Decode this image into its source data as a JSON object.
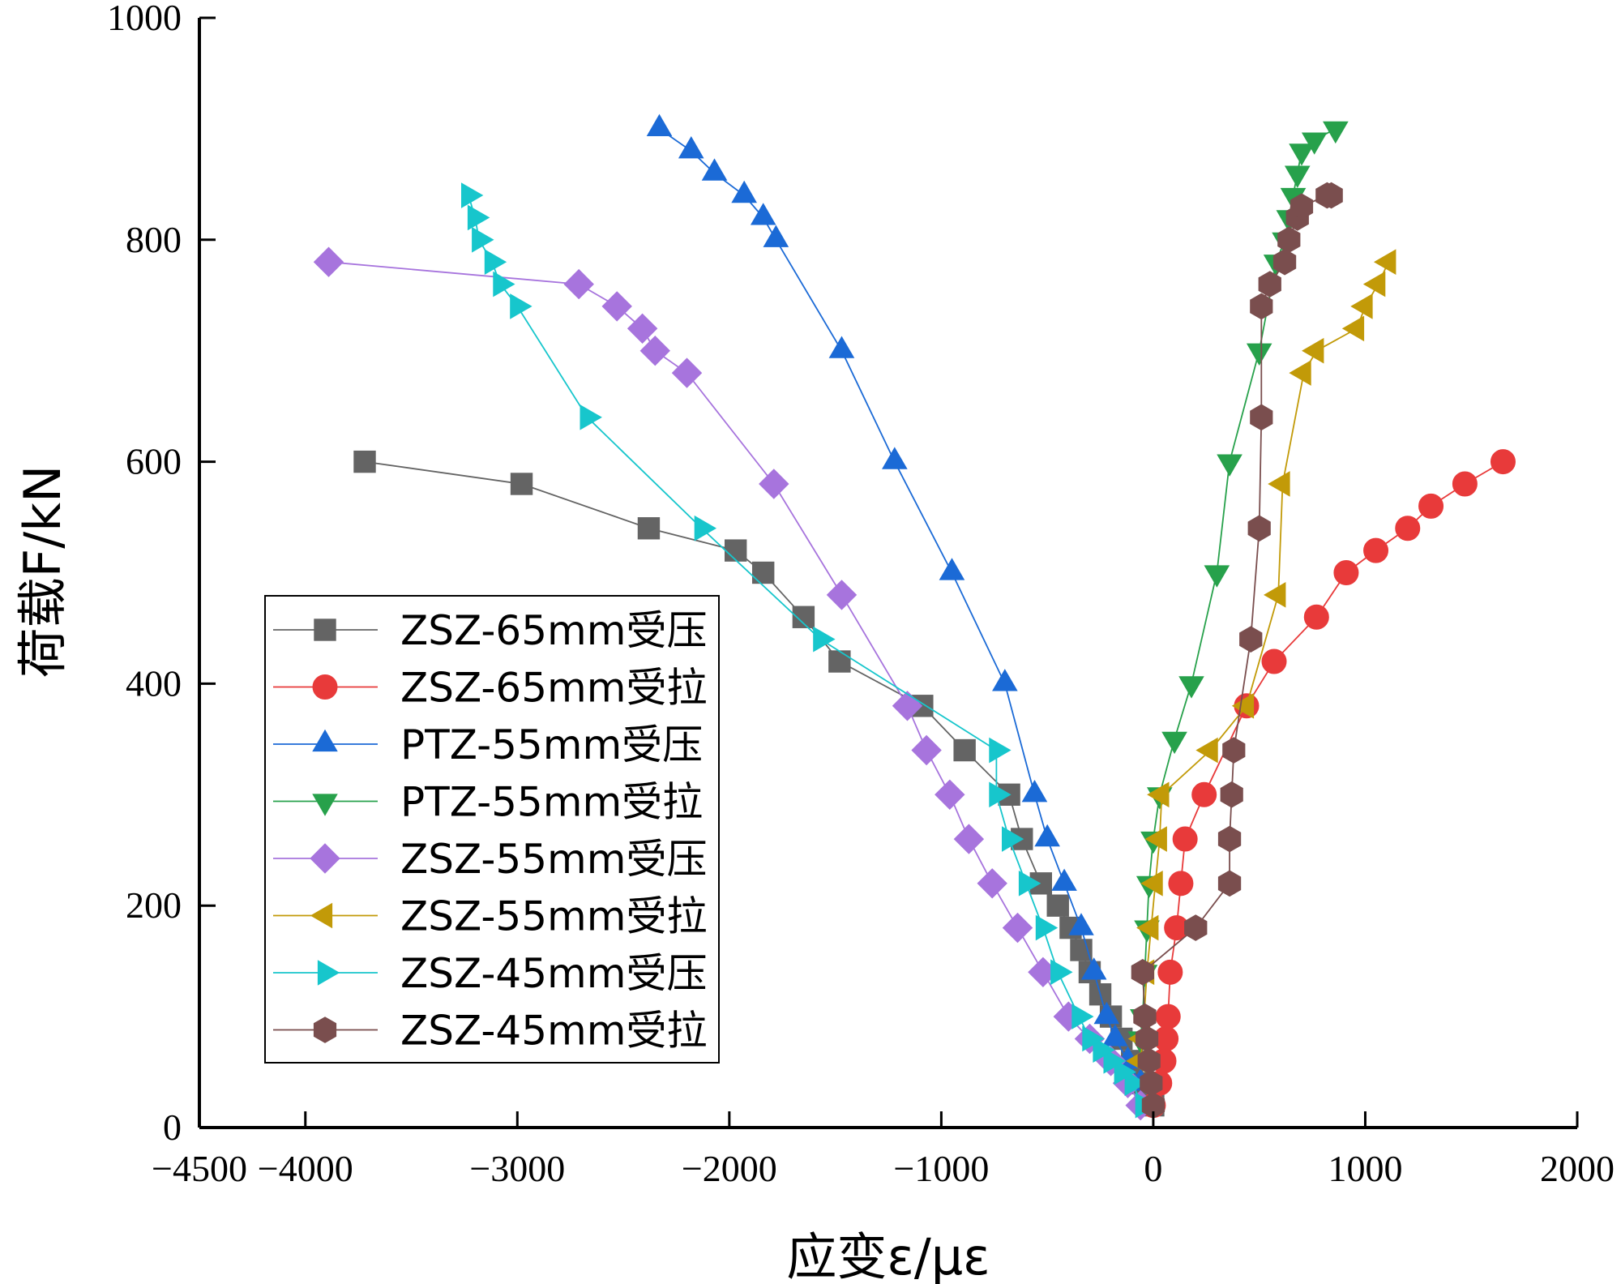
{
  "chart_data": {
    "type": "line",
    "title": "",
    "xlabel": "应变ε/με",
    "ylabel": "荷载F/kN",
    "xlim": [
      -4500,
      2000
    ],
    "ylim": [
      0,
      1000
    ],
    "xticks": [
      -4500,
      -4000,
      -3000,
      -2000,
      -1000,
      0,
      1000,
      2000
    ],
    "xtick_labels": [
      "−4500",
      "−4000",
      "−3000",
      "−2000",
      "−1000",
      "0",
      "1000",
      "2000"
    ],
    "yticks": [
      0,
      200,
      400,
      600,
      800,
      1000
    ],
    "ytick_labels": [
      "0",
      "200",
      "400",
      "600",
      "800",
      "1000"
    ],
    "grid": false,
    "legend_position": "lower-left",
    "series": [
      {
        "name": "ZSZ-65mm受压",
        "color": "#646464",
        "marker": "square",
        "x": [
          0,
          -50,
          -100,
          -150,
          -200,
          -250,
          -300,
          -340,
          -390,
          -450,
          -530,
          -620,
          -680,
          -890,
          -1090,
          -1480,
          -1650,
          -1840,
          -1970,
          -2380,
          -2980,
          -3720
        ],
        "y": [
          20,
          40,
          60,
          80,
          100,
          120,
          140,
          160,
          180,
          200,
          220,
          260,
          300,
          340,
          380,
          420,
          460,
          500,
          520,
          540,
          580,
          600
        ]
      },
      {
        "name": "ZSZ-65mm受拉",
        "color": "#e83a3a",
        "marker": "circle",
        "x": [
          0,
          30,
          50,
          60,
          70,
          80,
          110,
          130,
          150,
          240,
          440,
          570,
          770,
          910,
          1050,
          1200,
          1310,
          1470,
          1650
        ],
        "y": [
          20,
          40,
          60,
          80,
          100,
          140,
          180,
          220,
          260,
          300,
          380,
          420,
          460,
          500,
          520,
          540,
          560,
          580,
          600
        ]
      },
      {
        "name": "PTZ-55mm受压",
        "color": "#1b6ad6",
        "marker": "triangle-up",
        "x": [
          -60,
          -120,
          -180,
          -220,
          -280,
          -340,
          -420,
          -500,
          -560,
          -700,
          -950,
          -1220,
          -1470,
          -1780,
          -1840,
          -1930,
          -2070,
          -2180,
          -2330
        ],
        "y": [
          40,
          60,
          80,
          100,
          140,
          180,
          220,
          260,
          300,
          400,
          500,
          600,
          700,
          800,
          820,
          840,
          860,
          880,
          900
        ]
      },
      {
        "name": "PTZ-55mm受拉",
        "color": "#27a14b",
        "marker": "triangle-down",
        "x": [
          -60,
          -50,
          -40,
          -30,
          -20,
          0,
          30,
          100,
          180,
          300,
          360,
          500,
          580,
          620,
          640,
          660,
          680,
          700,
          760,
          860
        ],
        "y": [
          80,
          100,
          140,
          180,
          220,
          260,
          300,
          350,
          400,
          500,
          600,
          700,
          780,
          800,
          820,
          840,
          860,
          880,
          890,
          900
        ]
      },
      {
        "name": "ZSZ-55mm受压",
        "color": "#a774dd",
        "marker": "diamond",
        "x": [
          -60,
          -120,
          -200,
          -300,
          -400,
          -520,
          -640,
          -760,
          -870,
          -960,
          -1070,
          -1160,
          -1470,
          -1790,
          -2200,
          -2350,
          -2410,
          -2530,
          -2710,
          -3890
        ],
        "y": [
          20,
          40,
          60,
          80,
          100,
          140,
          180,
          220,
          260,
          300,
          340,
          380,
          480,
          580,
          680,
          700,
          720,
          740,
          760,
          780
        ]
      },
      {
        "name": "ZSZ-55mm受拉",
        "color": "#c29a08",
        "marker": "triangle-left",
        "x": [
          -60,
          -50,
          -30,
          -10,
          10,
          30,
          40,
          270,
          440,
          590,
          610,
          710,
          770,
          960,
          1000,
          1060,
          1110
        ],
        "y": [
          60,
          80,
          140,
          180,
          220,
          260,
          300,
          340,
          380,
          480,
          580,
          680,
          700,
          720,
          740,
          760,
          780
        ]
      },
      {
        "name": "ZSZ-45mm受压",
        "color": "#17c6cc",
        "marker": "triangle-right",
        "x": [
          -50,
          -100,
          -150,
          -200,
          -250,
          -300,
          -350,
          -450,
          -520,
          -600,
          -680,
          -740,
          -740,
          -1570,
          -2130,
          -2670,
          -3000,
          -3080,
          -3120,
          -3180,
          -3200,
          -3230
        ],
        "y": [
          20,
          40,
          50,
          60,
          70,
          80,
          100,
          140,
          180,
          220,
          260,
          300,
          340,
          440,
          540,
          640,
          740,
          760,
          780,
          800,
          820,
          840
        ]
      },
      {
        "name": "ZSZ-45mm受拉",
        "color": "#7a4e4e",
        "marker": "hexagon",
        "x": [
          0,
          -10,
          -20,
          -30,
          -40,
          -50,
          200,
          360,
          360,
          370,
          380,
          460,
          500,
          510,
          510,
          550,
          620,
          640,
          680,
          700,
          820,
          840
        ],
        "y": [
          20,
          40,
          60,
          80,
          100,
          140,
          180,
          220,
          260,
          300,
          340,
          440,
          540,
          640,
          740,
          760,
          780,
          800,
          820,
          830,
          840,
          840
        ]
      }
    ]
  }
}
